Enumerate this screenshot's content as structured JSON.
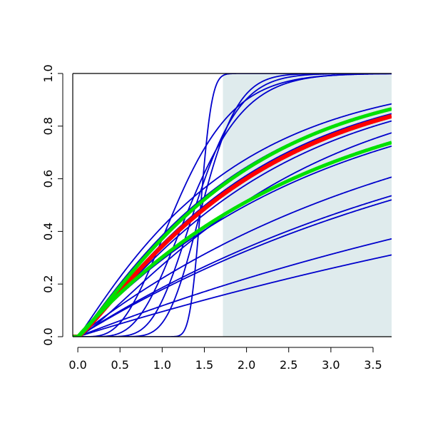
{
  "chart_data": {
    "type": "line",
    "title": "",
    "xlabel": "",
    "ylabel": "",
    "xlim": [
      -0.06,
      3.72
    ],
    "ylim": [
      0.0,
      1.0
    ],
    "x_ticks": [
      "0.0",
      "0.5",
      "1.0",
      "1.5",
      "2.0",
      "2.5",
      "3.0",
      "3.5"
    ],
    "y_ticks": [
      "0.0",
      "0.2",
      "0.4",
      "0.6",
      "0.8",
      "1.0"
    ],
    "grid": false,
    "legend": "none",
    "shaded_region": {
      "x": [
        1.72,
        3.72
      ],
      "y": [
        0.0,
        1.0
      ],
      "color": "#dfebed"
    },
    "colors": {
      "blue": "#0000cc",
      "red": "#ff0000",
      "green": "#00e000"
    },
    "series": [
      {
        "kind": "gamma_cdf",
        "shape": 1.0,
        "scale": 3.99,
        "color": "blue",
        "width": 1.8
      },
      {
        "kind": "gamma_cdf",
        "shape": 1.0,
        "scale": 4.85,
        "color": "blue",
        "width": 1.8
      },
      {
        "kind": "gamma_cdf",
        "shape": 1.0,
        "scale": 5.07,
        "color": "blue",
        "width": 1.8
      },
      {
        "kind": "gamma_cdf",
        "shape": 1.0,
        "scale": 8.0,
        "color": "blue",
        "width": 1.8
      },
      {
        "kind": "gamma_cdf",
        "shape": 1.0,
        "scale": 10.0,
        "color": "blue",
        "width": 1.8
      },
      {
        "kind": "gamma_cdf",
        "shape": 1.0,
        "scale": 2.89,
        "color": "blue",
        "width": 1.8
      },
      {
        "kind": "gamma_cdf",
        "shape": 1.2,
        "scale": 1.85,
        "color": "blue",
        "width": 1.8
      },
      {
        "kind": "gamma_cdf",
        "shape": 1.2,
        "scale": 1.7,
        "color": "blue",
        "width": 1.8
      },
      {
        "kind": "gamma_cdf",
        "shape": 1.15,
        "scale": 1.65,
        "color": "blue",
        "width": 1.8
      },
      {
        "kind": "gamma_cdf",
        "shape": 1.3,
        "scale": 1.95,
        "color": "blue",
        "width": 1.8
      },
      {
        "kind": "gamma_cdf",
        "shape": 1.1,
        "scale": 1.6,
        "color": "blue",
        "width": 1.8
      },
      {
        "kind": "gamma_cdf",
        "shape": 5,
        "scale": 0.25,
        "color": "blue",
        "width": 1.8
      },
      {
        "kind": "gamma_cdf",
        "shape": 7,
        "scale": 0.2,
        "color": "blue",
        "width": 1.8
      },
      {
        "kind": "gamma_cdf",
        "shape": 12,
        "scale": 0.12,
        "color": "blue",
        "width": 1.8
      },
      {
        "kind": "gamma_cdf",
        "shape": 20,
        "scale": 0.075,
        "color": "blue",
        "width": 1.8
      },
      {
        "kind": "gamma_cdf",
        "shape": 200,
        "scale": 0.0073,
        "color": "blue",
        "width": 1.8
      },
      {
        "kind": "gamma_cdf",
        "shape": 1.2,
        "scale": 1.75,
        "color": "red",
        "width": 6
      },
      {
        "kind": "gamma_cdf",
        "shape": 1.0,
        "scale": 2.78,
        "color": "green",
        "width": 5
      },
      {
        "kind": "gamma_cdf",
        "shape": 1.2,
        "scale": 1.6,
        "color": "green",
        "width": 5
      }
    ]
  }
}
